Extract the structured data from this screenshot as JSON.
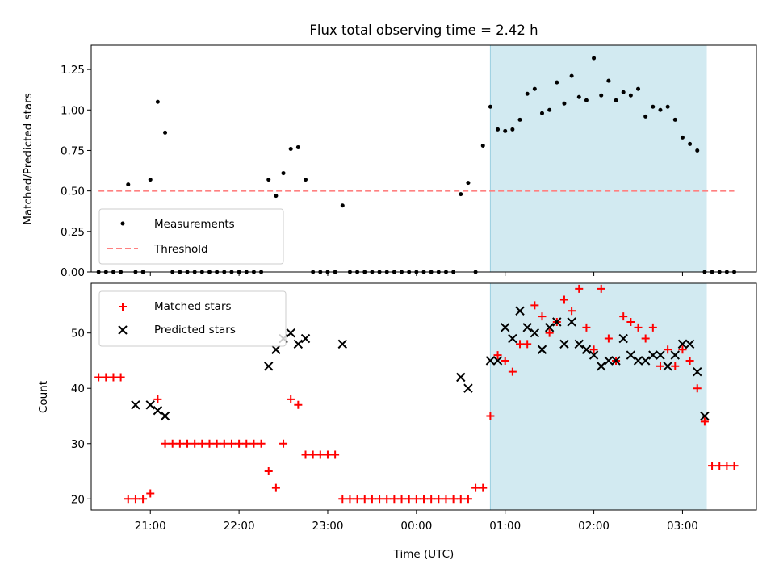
{
  "chart_data": [
    {
      "type": "scatter",
      "title": "Flux total observing time = 2.42 h",
      "xlabel": "",
      "ylabel": "Matched/Predicted stars",
      "xlim": [
        "20:20",
        "03:50"
      ],
      "ylim": [
        0,
        1.4
      ],
      "yticks": [
        "0.00",
        "0.25",
        "0.50",
        "0.75",
        "1.00",
        "1.25"
      ],
      "highlight_span": [
        "00:50",
        "03:16"
      ],
      "legend_position": "lower-left",
      "legend": [
        {
          "label": "Measurements",
          "marker": "dot",
          "color": "#000000"
        },
        {
          "label": "Threshold",
          "marker": "dashed-line",
          "color": "#ff8080"
        }
      ],
      "threshold": {
        "value": 0.5,
        "x_range": [
          "20:25",
          "03:35"
        ],
        "color": "#ff8080"
      },
      "series": [
        {
          "name": "Measurements",
          "marker": "dot",
          "color": "#000000",
          "x": [
            "20:25",
            "20:30",
            "20:35",
            "20:40",
            "20:45",
            "20:50",
            "20:55",
            "21:00",
            "21:05",
            "21:10",
            "21:15",
            "21:20",
            "21:25",
            "21:30",
            "21:35",
            "21:40",
            "21:45",
            "21:50",
            "21:55",
            "22:00",
            "22:05",
            "22:10",
            "22:15",
            "22:20",
            "22:25",
            "22:30",
            "22:35",
            "22:40",
            "22:45",
            "22:50",
            "22:55",
            "23:00",
            "23:05",
            "23:10",
            "23:15",
            "23:20",
            "23:25",
            "23:30",
            "23:35",
            "23:40",
            "23:45",
            "23:50",
            "23:55",
            "00:00",
            "00:05",
            "00:10",
            "00:15",
            "00:20",
            "00:25",
            "00:30",
            "00:35",
            "00:40",
            "00:45",
            "00:50",
            "00:55",
            "01:00",
            "01:05",
            "01:10",
            "01:15",
            "01:20",
            "01:25",
            "01:30",
            "01:35",
            "01:40",
            "01:45",
            "01:50",
            "01:55",
            "02:00",
            "02:05",
            "02:10",
            "02:15",
            "02:20",
            "02:25",
            "02:30",
            "02:35",
            "02:40",
            "02:45",
            "02:50",
            "02:55",
            "03:00",
            "03:05",
            "03:10",
            "03:15",
            "03:20",
            "03:25",
            "03:30",
            "03:35"
          ],
          "y": [
            0,
            0,
            0,
            0,
            0.54,
            0,
            0,
            0.57,
            1.05,
            0.86,
            0,
            0,
            0,
            0,
            0,
            0,
            0,
            0,
            0,
            0,
            0,
            0,
            0,
            0.57,
            0.47,
            0.61,
            0.76,
            0.77,
            0.57,
            0,
            0,
            0,
            0,
            0.41,
            0,
            0,
            0,
            0,
            0,
            0,
            0,
            0,
            0,
            0,
            0,
            0,
            0,
            0,
            0,
            0.48,
            0.55,
            0,
            0.78,
            1.02,
            0.88,
            0.87,
            0.88,
            0.94,
            1.1,
            1.13,
            0.98,
            1.0,
            1.17,
            1.04,
            1.21,
            1.08,
            1.06,
            1.32,
            1.09,
            1.18,
            1.06,
            1.11,
            1.09,
            1.13,
            0.96,
            1.02,
            1.0,
            1.02,
            0.94,
            0.83,
            0.79,
            0.75,
            0,
            0,
            0,
            0,
            0
          ]
        }
      ]
    },
    {
      "type": "scatter",
      "title": "",
      "xlabel": "Time (UTC)",
      "ylabel": "Count",
      "xlim": [
        "20:20",
        "03:50"
      ],
      "ylim": [
        18,
        59
      ],
      "yticks": [
        "20",
        "30",
        "40",
        "50"
      ],
      "xticks": [
        "21:00",
        "22:00",
        "23:00",
        "00:00",
        "01:00",
        "02:00",
        "03:00"
      ],
      "highlight_span": [
        "00:50",
        "03:16"
      ],
      "legend_position": "upper-left",
      "legend": [
        {
          "label": "Matched stars",
          "marker": "plus",
          "color": "#ff0000"
        },
        {
          "label": "Predicted stars",
          "marker": "x",
          "color": "#000000"
        }
      ],
      "series": [
        {
          "name": "Matched stars",
          "marker": "plus",
          "color": "#ff0000",
          "x": [
            "20:25",
            "20:30",
            "20:35",
            "20:40",
            "20:45",
            "20:50",
            "20:55",
            "21:00",
            "21:05",
            "21:10",
            "21:15",
            "21:20",
            "21:25",
            "21:30",
            "21:35",
            "21:40",
            "21:45",
            "21:50",
            "21:55",
            "22:00",
            "22:05",
            "22:10",
            "22:15",
            "22:20",
            "22:25",
            "22:30",
            "22:35",
            "22:40",
            "22:45",
            "22:50",
            "22:55",
            "23:00",
            "23:05",
            "23:10",
            "23:15",
            "23:20",
            "23:25",
            "23:30",
            "23:35",
            "23:40",
            "23:45",
            "23:50",
            "23:55",
            "00:00",
            "00:05",
            "00:10",
            "00:15",
            "00:20",
            "00:25",
            "00:30",
            "00:35",
            "00:40",
            "00:45",
            "00:50",
            "00:55",
            "01:00",
            "01:05",
            "01:10",
            "01:15",
            "01:20",
            "01:25",
            "01:30",
            "01:35",
            "01:40",
            "01:45",
            "01:50",
            "01:55",
            "02:00",
            "02:05",
            "02:10",
            "02:15",
            "02:20",
            "02:25",
            "02:30",
            "02:35",
            "02:40",
            "02:45",
            "02:50",
            "02:55",
            "03:00",
            "03:05",
            "03:10",
            "03:15",
            "03:20",
            "03:25",
            "03:30",
            "03:35"
          ],
          "y": [
            42,
            42,
            42,
            42,
            20,
            20,
            20,
            21,
            38,
            30,
            30,
            30,
            30,
            30,
            30,
            30,
            30,
            30,
            30,
            30,
            30,
            30,
            30,
            25,
            22,
            30,
            38,
            37,
            28,
            28,
            28,
            28,
            28,
            20,
            20,
            20,
            20,
            20,
            20,
            20,
            20,
            20,
            20,
            20,
            20,
            20,
            20,
            20,
            20,
            20,
            20,
            22,
            22,
            35,
            46,
            45,
            43,
            48,
            48,
            55,
            53,
            50,
            52,
            56,
            54,
            58,
            51,
            47,
            58,
            49,
            45,
            53,
            52,
            51,
            49,
            51,
            44,
            47,
            44,
            47,
            45,
            40,
            34,
            26,
            26,
            26,
            26
          ]
        },
        {
          "name": "Predicted stars",
          "marker": "x",
          "color": "#000000",
          "x": [
            "20:50",
            "21:00",
            "21:05",
            "21:10",
            "22:20",
            "22:25",
            "22:30",
            "22:35",
            "22:40",
            "22:45",
            "23:10",
            "00:30",
            "00:35",
            "00:50",
            "00:55",
            "01:00",
            "01:05",
            "01:10",
            "01:15",
            "01:20",
            "01:25",
            "01:30",
            "01:35",
            "01:40",
            "01:45",
            "01:50",
            "01:55",
            "02:00",
            "02:05",
            "02:10",
            "02:15",
            "02:20",
            "02:25",
            "02:30",
            "02:35",
            "02:40",
            "02:45",
            "02:50",
            "02:55",
            "03:00",
            "03:05",
            "03:10",
            "03:15"
          ],
          "y": [
            37,
            37,
            36,
            35,
            44,
            47,
            49,
            50,
            48,
            49,
            48,
            42,
            40,
            45,
            45,
            51,
            49,
            54,
            51,
            50,
            47,
            51,
            52,
            48,
            52,
            48,
            47,
            46,
            44,
            45,
            45,
            49,
            46,
            45,
            45,
            46,
            46,
            44,
            46,
            48,
            48,
            43,
            35
          ]
        }
      ]
    }
  ]
}
